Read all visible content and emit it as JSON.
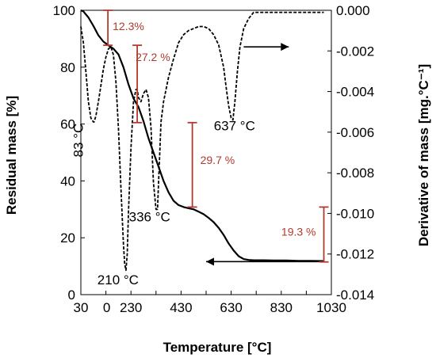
{
  "chart_data": {
    "type": "line",
    "xlabel": "Temperature [°C]",
    "ylabel_left": "Residual mass [%]",
    "ylabel_right": "Derivative of mass [mg.°C⁻¹]",
    "xlim": [
      30,
      1030
    ],
    "xticks": [
      "30",
      "230",
      "430",
      "630",
      "830",
      "1030"
    ],
    "xticks_mid": [
      "130",
      "330",
      "530",
      "730",
      "930"
    ],
    "xticks_mid_label": "0",
    "ylim_left": [
      0,
      100
    ],
    "yticks_left": [
      "0",
      "20",
      "40",
      "60",
      "80",
      "100"
    ],
    "ylim_right": [
      -0.014,
      0
    ],
    "yticks_right": [
      "-0.014",
      "-0.012",
      "-0.010",
      "-0.008",
      "-0.006",
      "-0.004",
      "-0.002",
      "0.000"
    ],
    "colors": {
      "curves": "#000000",
      "annotation": "#b03a2e"
    },
    "series": [
      {
        "axis": "left",
        "style": "solid",
        "x": [
          30,
          40,
          60,
          80,
          100,
          120,
          140,
          160,
          180,
          200,
          220,
          240,
          260,
          280,
          300,
          320,
          340,
          360,
          380,
          400,
          420,
          440,
          460,
          480,
          500,
          520,
          540,
          560,
          580,
          600,
          620,
          640,
          660,
          680,
          700,
          720,
          760,
          800,
          850,
          900,
          950,
          1000
        ],
        "y": [
          100,
          99.6,
          97.5,
          94.5,
          91.2,
          89.0,
          87.7,
          86.5,
          84.5,
          80,
          74,
          69,
          66,
          61,
          55,
          50,
          45,
          40,
          36,
          33,
          31.5,
          30.8,
          30.4,
          30.0,
          29.2,
          28.3,
          27.0,
          25.5,
          23.5,
          21.0,
          18.0,
          15.5,
          13.5,
          12.5,
          12.2,
          12.1,
          12.1,
          12.0,
          12.0,
          11.9,
          11.9,
          11.8
        ]
      },
      {
        "axis": "right",
        "style": "dashed",
        "x": [
          30,
          40,
          50,
          60,
          70,
          80,
          83,
          90,
          100,
          110,
          120,
          130,
          140,
          150,
          160,
          170,
          180,
          190,
          200,
          205,
          210,
          215,
          220,
          230,
          240,
          250,
          255,
          260,
          270,
          280,
          290,
          300,
          310,
          320,
          330,
          336,
          340,
          350,
          360,
          380,
          400,
          420,
          440,
          460,
          480,
          500,
          520,
          540,
          560,
          580,
          600,
          610,
          620,
          630,
          637,
          645,
          655,
          665,
          680,
          700,
          720,
          760,
          800,
          850,
          900,
          950,
          1000
        ],
        "y": [
          -0.0008,
          -0.0016,
          -0.003,
          -0.0045,
          -0.0053,
          -0.0055,
          -0.0055,
          -0.0052,
          -0.0045,
          -0.0037,
          -0.0029,
          -0.0023,
          -0.0019,
          -0.0018,
          -0.0022,
          -0.0035,
          -0.0058,
          -0.0088,
          -0.0115,
          -0.0125,
          -0.0128,
          -0.012,
          -0.01,
          -0.0068,
          -0.0045,
          -0.0039,
          -0.0039,
          -0.0043,
          -0.0045,
          -0.0041,
          -0.0039,
          -0.0043,
          -0.0058,
          -0.0085,
          -0.0098,
          -0.0098,
          -0.0085,
          -0.0055,
          -0.0045,
          -0.0033,
          -0.0024,
          -0.0016,
          -0.0012,
          -0.001,
          -0.0009,
          -0.0008,
          -0.0008,
          -0.0009,
          -0.0012,
          -0.0017,
          -0.0028,
          -0.0038,
          -0.0047,
          -0.0053,
          -0.0054,
          -0.0045,
          -0.003,
          -0.0018,
          -0.0009,
          -0.0004,
          -0.0001,
          -0.0001,
          -0.0001,
          -0.0001,
          -0.0001,
          -0.0001,
          -0.0001
        ]
      }
    ],
    "peak_labels": [
      {
        "text": "83 °C",
        "x": 83
      },
      {
        "text": "210 °C",
        "x": 210
      },
      {
        "text": "336 °C",
        "x": 336
      },
      {
        "text": "637 °C",
        "x": 637
      }
    ],
    "mass_loss_steps": [
      {
        "label": "12.3%",
        "x": 138,
        "y_top": 100,
        "y_bottom": 87.7
      },
      {
        "label": "27.2 %",
        "x": 255,
        "y_top": 87.7,
        "y_bottom": 60.5
      },
      {
        "label": "29.7 %",
        "x": 475,
        "y_top": 60.5,
        "y_bottom": 30.8
      },
      {
        "label": "19.3 %",
        "x": 1000,
        "y_top": 30.8,
        "y_bottom": 11.5
      }
    ],
    "arrows": [
      {
        "from_x": 680,
        "to_x": 860,
        "axis": "right",
        "y": -0.0018,
        "direction": "right"
      },
      {
        "from_x": 980,
        "to_x": 530,
        "axis": "left",
        "y": 11.6,
        "direction": "left"
      }
    ]
  }
}
